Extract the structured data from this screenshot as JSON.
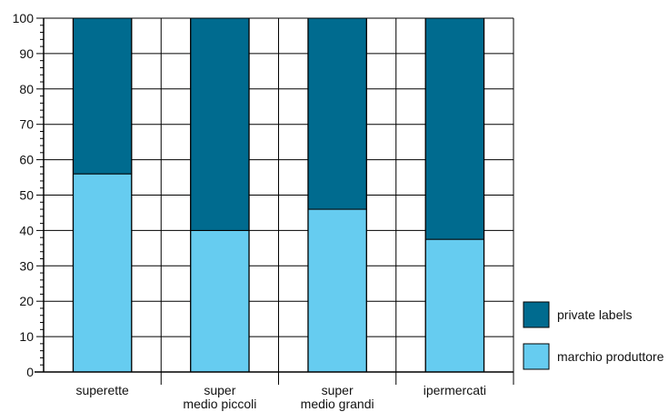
{
  "chart_data": {
    "type": "bar",
    "stacked": true,
    "categories": [
      [
        "superette"
      ],
      [
        "super",
        "medio piccoli"
      ],
      [
        "super",
        "medio grandi"
      ],
      [
        "ipermercati"
      ]
    ],
    "series": [
      {
        "name": "marchio produttore",
        "color": "#66ccf0",
        "values": [
          56,
          40,
          46,
          37.5
        ]
      },
      {
        "name": "private labels",
        "color": "#006b8f",
        "values": [
          44,
          60,
          54,
          62.5
        ]
      }
    ],
    "ylim": [
      0,
      100
    ],
    "yticks": [
      "0",
      "10",
      "20",
      "30",
      "40",
      "50",
      "60",
      "70",
      "80",
      "90",
      "100"
    ],
    "grid": true,
    "legend_position": "right-bottom",
    "legend_order": [
      "private labels",
      "marchio produttore"
    ],
    "xlabel": "",
    "ylabel": ""
  }
}
